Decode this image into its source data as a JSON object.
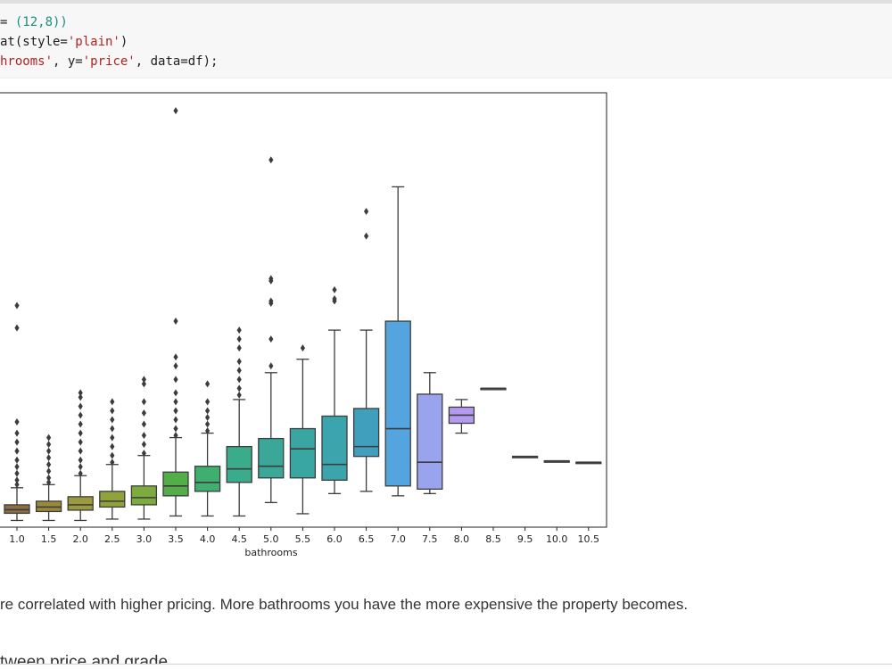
{
  "code_cell": {
    "line1": [
      {
        "t": "= ",
        "c": "plain"
      },
      {
        "t": "(12,8))",
        "c": "num"
      }
    ],
    "line2": [
      {
        "t": "at(style=",
        "c": "plain"
      },
      {
        "t": "'plain'",
        "c": "str"
      },
      {
        "t": ")",
        "c": "plain"
      }
    ],
    "line3": [
      {
        "t": "hrooms'",
        "c": "str"
      },
      {
        "t": ", y=",
        "c": "plain"
      },
      {
        "t": "'price'",
        "c": "str"
      },
      {
        "t": ", data=df);",
        "c": "plain"
      }
    ]
  },
  "markdown": {
    "text": "re correlated with higher pricing. More bathrooms you have the more expensive the property becomes.",
    "heading_partial": "tween price and grade"
  },
  "chart_data": {
    "type": "box",
    "xlabel": "bathrooms",
    "ylabel": "",
    "title": "",
    "categories": [
      "1.0",
      "1.5",
      "2.0",
      "2.5",
      "3.0",
      "3.5",
      "4.0",
      "4.5",
      "5.0",
      "5.5",
      "6.0",
      "6.5",
      "7.0",
      "7.5",
      "8.0",
      "8.5",
      "9.5",
      "10.0",
      "10.5"
    ],
    "ylim": [
      0,
      9.7
    ],
    "units_note": "",
    "boxes": [
      {
        "cat": "1.0",
        "wlo": 0.15,
        "q1": 0.31,
        "med": 0.39,
        "q3": 0.5,
        "whi": 0.88,
        "outliers": [
          0.95,
          1.05,
          1.2,
          1.35,
          1.5,
          1.7,
          1.9,
          2.1,
          2.35,
          4.45,
          4.95
        ],
        "color": "#8d6e43"
      },
      {
        "cat": "1.5",
        "wlo": 0.15,
        "q1": 0.35,
        "med": 0.45,
        "q3": 0.58,
        "whi": 0.95,
        "outliers": [
          1.0,
          1.1,
          1.25,
          1.4,
          1.55,
          1.7,
          1.85,
          2.0
        ],
        "color": "#998a3a"
      },
      {
        "cat": "2.0",
        "wlo": 0.15,
        "q1": 0.38,
        "med": 0.5,
        "q3": 0.68,
        "whi": 1.15,
        "outliers": [
          1.2,
          1.35,
          1.5,
          1.7,
          1.9,
          2.1,
          2.3,
          2.5,
          2.7,
          2.9,
          3.0
        ],
        "color": "#9b9a3c"
      },
      {
        "cat": "2.5",
        "wlo": 0.18,
        "q1": 0.45,
        "med": 0.58,
        "q3": 0.8,
        "whi": 1.4,
        "outliers": [
          1.45,
          1.6,
          1.8,
          2.0,
          2.2,
          2.4,
          2.6,
          2.8
        ],
        "color": "#90a23a"
      },
      {
        "cat": "3.0",
        "wlo": 0.18,
        "q1": 0.5,
        "med": 0.66,
        "q3": 0.92,
        "whi": 1.6,
        "outliers": [
          1.65,
          1.85,
          2.05,
          2.3,
          2.55,
          2.8,
          3.2,
          3.3
        ],
        "color": "#7dab3e"
      },
      {
        "cat": "3.5",
        "wlo": 0.25,
        "q1": 0.7,
        "med": 0.92,
        "q3": 1.23,
        "whi": 2.0,
        "outliers": [
          2.05,
          2.2,
          2.4,
          2.6,
          2.8,
          3.0,
          3.3,
          3.6,
          3.8,
          4.6,
          9.3
        ],
        "color": "#53ae4a"
      },
      {
        "cat": "4.0",
        "wlo": 0.25,
        "q1": 0.8,
        "med": 1.0,
        "q3": 1.36,
        "whi": 2.1,
        "outliers": [
          2.15,
          2.3,
          2.45,
          2.6,
          2.8,
          3.2
        ],
        "color": "#3fae6e"
      },
      {
        "cat": "4.5",
        "wlo": 0.25,
        "q1": 1.0,
        "med": 1.3,
        "q3": 1.8,
        "whi": 2.85,
        "outliers": [
          2.95,
          3.1,
          3.3,
          3.5,
          3.7,
          4.0,
          4.2,
          4.4
        ],
        "color": "#3aab8b"
      },
      {
        "cat": "5.0",
        "wlo": 0.55,
        "q1": 1.1,
        "med": 1.36,
        "q3": 1.98,
        "whi": 3.45,
        "outliers": [
          3.6,
          4.2,
          5.0,
          5.05,
          5.5,
          5.55,
          8.2
        ],
        "color": "#3aa798"
      },
      {
        "cat": "5.5",
        "wlo": 0.3,
        "q1": 1.1,
        "med": 1.75,
        "q3": 2.2,
        "whi": 3.75,
        "outliers": [
          4.0
        ],
        "color": "#3aa6a2"
      },
      {
        "cat": "6.0",
        "wlo": 0.75,
        "q1": 1.05,
        "med": 1.4,
        "q3": 2.48,
        "whi": 4.4,
        "outliers": [
          5.05,
          5.1,
          5.3
        ],
        "color": "#3ca4ad"
      },
      {
        "cat": "6.5",
        "wlo": 0.8,
        "q1": 1.58,
        "med": 1.8,
        "q3": 2.65,
        "whi": 4.4,
        "outliers": [
          6.5,
          7.05
        ],
        "color": "#3f9fbd"
      },
      {
        "cat": "7.0",
        "wlo": 0.7,
        "q1": 0.92,
        "med": 2.2,
        "q3": 4.6,
        "whi": 7.6,
        "outliers": [],
        "color": "#54a5df"
      },
      {
        "cat": "7.5",
        "wlo": 0.75,
        "q1": 0.85,
        "med": 1.45,
        "q3": 2.97,
        "whi": 3.45,
        "outliers": [],
        "color": "#9aa3ee"
      },
      {
        "cat": "8.0",
        "wlo": 2.1,
        "q1": 2.32,
        "med": 2.5,
        "q3": 2.68,
        "whi": 2.85,
        "outliers": [],
        "color": "#b49bef"
      },
      {
        "cat": "8.5",
        "wlo": 3.1,
        "q1": 3.1,
        "med": 3.1,
        "q3": 3.1,
        "whi": 3.1,
        "outliers": [],
        "color": "#c996e8"
      },
      {
        "cat": "9.5",
        "wlo": 1.58,
        "q1": 1.58,
        "med": 1.58,
        "q3": 1.58,
        "whi": 1.58,
        "outliers": [],
        "color": "#d793e2"
      },
      {
        "cat": "10.0",
        "wlo": 1.48,
        "q1": 1.48,
        "med": 1.48,
        "q3": 1.48,
        "whi": 1.48,
        "outliers": [],
        "color": "#e28fd6"
      },
      {
        "cat": "10.5",
        "wlo": 1.45,
        "q1": 1.45,
        "med": 1.45,
        "q3": 1.45,
        "whi": 1.45,
        "outliers": [],
        "color": "#ea8bc7"
      }
    ]
  }
}
